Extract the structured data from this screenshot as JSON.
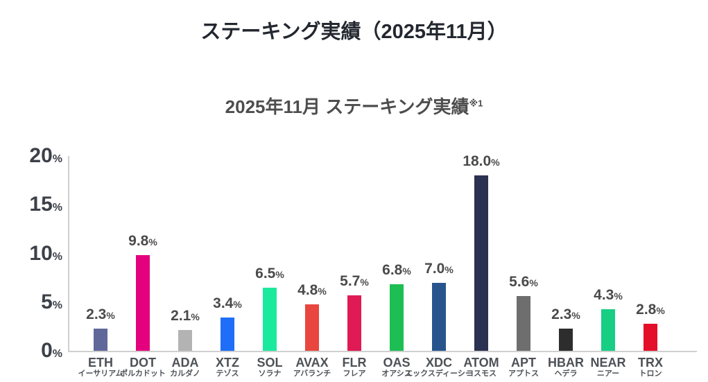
{
  "page": {
    "title": "ステーキング実績（2025年11月）"
  },
  "chart": {
    "title": "2025年11月 ステーキング実績",
    "footnote_marker": "※1"
  },
  "chart_data": {
    "type": "bar",
    "title": "2025年11月 ステーキング実績※1",
    "categories": [
      "ETH",
      "DOT",
      "ADA",
      "XTZ",
      "SOL",
      "AVAX",
      "FLR",
      "OAS",
      "XDC",
      "ATOM",
      "APT",
      "HBAR",
      "NEAR",
      "TRX"
    ],
    "category_sublabels": [
      "イーサリアム",
      "ポルカドット",
      "カルダノ",
      "テゾス",
      "ソラナ",
      "アバランチ",
      "フレア",
      "オアシス",
      "エックスディーシー",
      "コスモス",
      "アプトス",
      "ヘデラ",
      "ニアー",
      "トロン"
    ],
    "values": [
      2.3,
      9.8,
      2.1,
      3.4,
      6.5,
      4.8,
      5.7,
      6.8,
      7.0,
      18.0,
      5.6,
      2.3,
      4.3,
      2.8
    ],
    "value_labels": [
      "2.3%",
      "9.8%",
      "2.1%",
      "3.4%",
      "6.5%",
      "4.8%",
      "5.7%",
      "6.8%",
      "7.0%",
      "18.0%",
      "5.6%",
      "2.3%",
      "4.3%",
      "2.8%"
    ],
    "bar_colors": [
      "#60689A",
      "#E4017D",
      "#B3B3B3",
      "#1E6EF7",
      "#1BEA9E",
      "#E8463F",
      "#DF1A54",
      "#1DBE53",
      "#27548D",
      "#2B3150",
      "#6E6E6E",
      "#2D2D2D",
      "#17CE84",
      "#E40F28"
    ],
    "xlabel": "",
    "ylabel": "",
    "ylim": [
      0,
      20
    ],
    "yticks": [
      0,
      5,
      10,
      15,
      20
    ],
    "ytick_labels": [
      "0%",
      "5%",
      "10%",
      "15%",
      "20%"
    ],
    "grid": false,
    "legend": "none",
    "axis_color": "#CFCFCF",
    "value_label_color": "#4A4A4A"
  }
}
